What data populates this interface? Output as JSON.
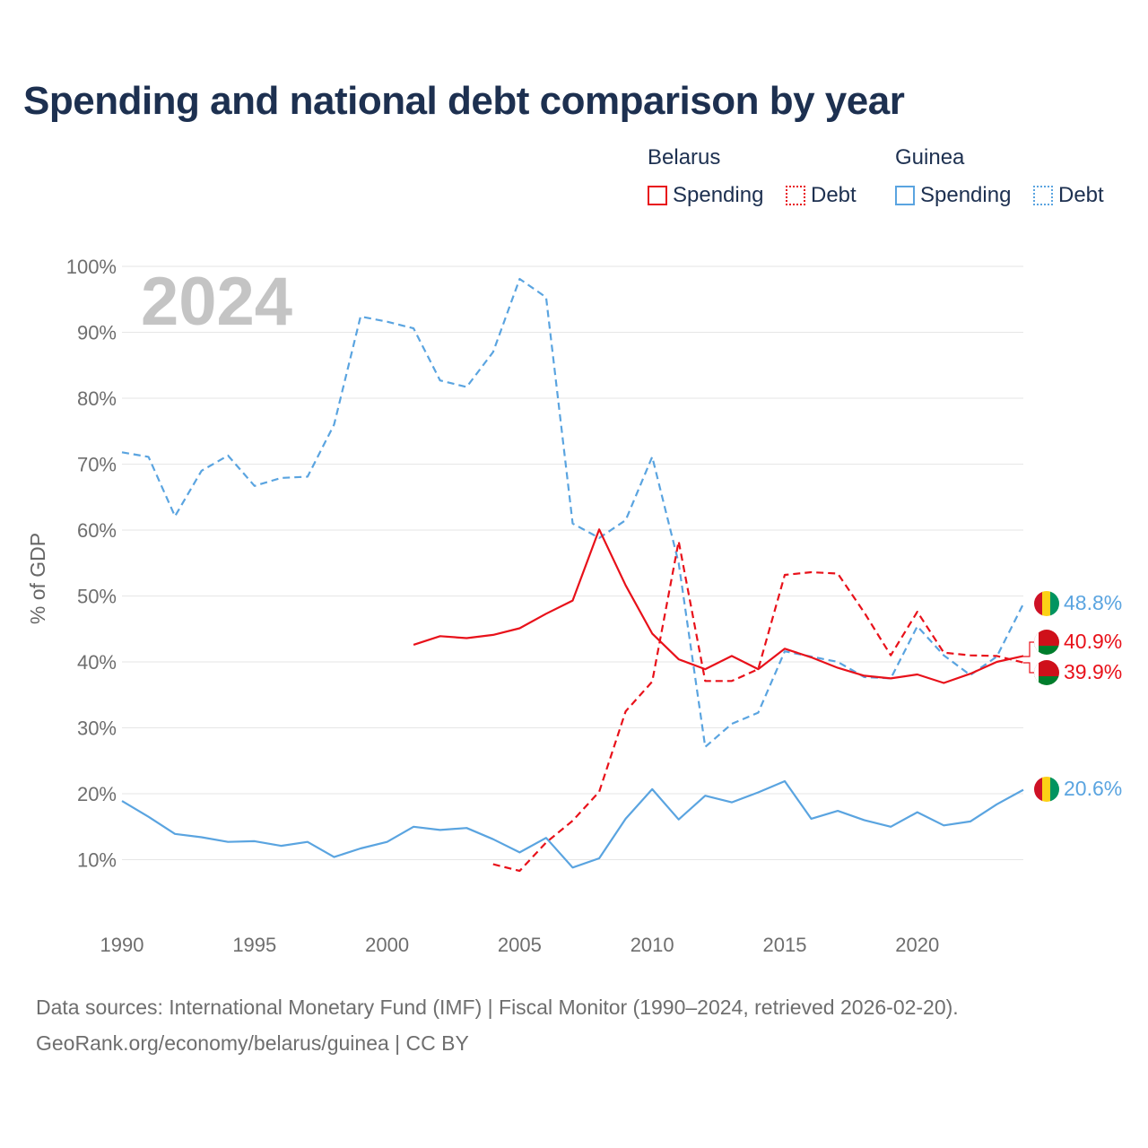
{
  "title": "Spending and national debt comparison by year",
  "legend": {
    "groups": [
      {
        "country": "Belarus",
        "color": "#e8111a",
        "items": [
          {
            "label": "Spending",
            "style": "solid"
          },
          {
            "label": "Debt",
            "style": "dotted"
          }
        ]
      },
      {
        "country": "Guinea",
        "color": "#5aa4e0",
        "items": [
          {
            "label": "Spending",
            "style": "solid"
          },
          {
            "label": "Debt",
            "style": "dotted"
          }
        ]
      }
    ]
  },
  "footer": {
    "line1": "Data sources: International Monetary Fund (IMF) | Fiscal Monitor (1990–2024, retrieved 2026-02-20).",
    "line2": "GeoRank.org/economy/belarus/guinea | CC BY"
  },
  "chart_data": {
    "type": "line",
    "title": "Spending and national debt comparison by year",
    "watermark_year": "2024",
    "xlabel": "",
    "ylabel": "% of GDP",
    "xlim": [
      1990,
      2024
    ],
    "ylim": [
      0,
      100
    ],
    "x_ticks": [
      "1990",
      "1995",
      "2000",
      "2005",
      "2010",
      "2015",
      "2020"
    ],
    "y_ticks": [
      "10%",
      "20%",
      "30%",
      "40%",
      "50%",
      "60%",
      "70%",
      "80%",
      "90%",
      "100%"
    ],
    "series": [
      {
        "name": "Guinea Debt",
        "country": "Guinea",
        "metric": "Debt",
        "color": "#5aa4e0",
        "dash": "dashed",
        "x": [
          1990,
          1991,
          1992,
          1993,
          1994,
          1995,
          1996,
          1997,
          1998,
          1999,
          2000,
          2001,
          2002,
          2003,
          2004,
          2005,
          2006,
          2007,
          2008,
          2009,
          2010,
          2011,
          2012,
          2013,
          2014,
          2015,
          2016,
          2017,
          2018,
          2019,
          2020,
          2021,
          2022,
          2023,
          2024
        ],
        "values": [
          71.8,
          71.1,
          62.1,
          69.0,
          71.3,
          66.7,
          67.9,
          68.1,
          76.0,
          92.4,
          91.6,
          90.6,
          82.7,
          81.7,
          87.0,
          98.1,
          95.3,
          61.0,
          58.8,
          61.5,
          71.1,
          55.0,
          27.1,
          30.6,
          32.3,
          41.6,
          40.8,
          40.0,
          37.7,
          37.5,
          45.4,
          41.0,
          38.0,
          40.8,
          48.8
        ],
        "end_label": "48.8%"
      },
      {
        "name": "Belarus Spending",
        "country": "Belarus",
        "metric": "Spending",
        "color": "#e8111a",
        "dash": "solid",
        "x": [
          2001,
          2002,
          2003,
          2004,
          2005,
          2006,
          2007,
          2008,
          2009,
          2010,
          2011,
          2012,
          2013,
          2014,
          2015,
          2016,
          2017,
          2018,
          2019,
          2020,
          2021,
          2022,
          2023,
          2024
        ],
        "values": [
          42.6,
          43.9,
          43.6,
          44.1,
          45.1,
          47.3,
          49.3,
          60.1,
          51.6,
          44.3,
          40.4,
          38.9,
          40.9,
          38.9,
          42.0,
          40.7,
          39.1,
          37.9,
          37.5,
          38.1,
          36.8,
          38.2,
          40.0,
          40.9
        ],
        "end_label": "40.9%"
      },
      {
        "name": "Belarus Debt",
        "country": "Belarus",
        "metric": "Debt",
        "color": "#e8111a",
        "dash": "dashed",
        "x": [
          2004,
          2005,
          2006,
          2007,
          2008,
          2009,
          2010,
          2011,
          2012,
          2013,
          2014,
          2015,
          2016,
          2017,
          2018,
          2019,
          2020,
          2021,
          2022,
          2023,
          2024
        ],
        "values": [
          9.3,
          8.3,
          12.6,
          15.9,
          20.3,
          32.5,
          37.0,
          58.3,
          37.1,
          37.1,
          38.9,
          53.2,
          53.6,
          53.4,
          47.5,
          41.0,
          47.6,
          41.4,
          41.0,
          40.9,
          39.9
        ],
        "end_label": "39.9%"
      },
      {
        "name": "Guinea Spending",
        "country": "Guinea",
        "metric": "Spending",
        "color": "#5aa4e0",
        "dash": "solid",
        "x": [
          1990,
          1991,
          1992,
          1993,
          1994,
          1995,
          1996,
          1997,
          1998,
          1999,
          2000,
          2001,
          2002,
          2003,
          2004,
          2005,
          2006,
          2007,
          2008,
          2009,
          2010,
          2011,
          2012,
          2013,
          2014,
          2015,
          2016,
          2017,
          2018,
          2019,
          2020,
          2021,
          2022,
          2023,
          2024
        ],
        "values": [
          18.9,
          16.5,
          13.9,
          13.4,
          12.7,
          12.8,
          12.1,
          12.7,
          10.4,
          11.7,
          12.7,
          15.0,
          14.5,
          14.8,
          13.1,
          11.1,
          13.3,
          8.8,
          10.2,
          16.2,
          20.7,
          16.1,
          19.7,
          18.7,
          20.2,
          21.9,
          16.2,
          17.4,
          16.0,
          15.0,
          17.2,
          15.2,
          15.8,
          18.4,
          20.6
        ],
        "end_label": "20.6%"
      }
    ]
  }
}
